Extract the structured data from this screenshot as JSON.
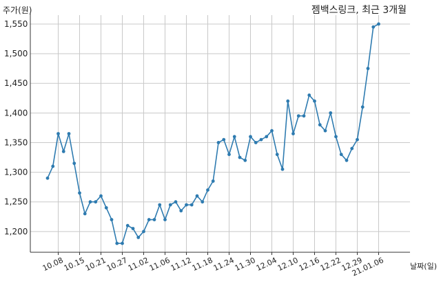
{
  "chart_data": {
    "type": "line",
    "title": "젬백스링크, 최근 3개월",
    "ylabel": "주가(원)",
    "xlabel": "날짜(일)",
    "ylim": [
      1165,
      1565
    ],
    "yticks": [
      1200,
      1250,
      1300,
      1350,
      1400,
      1450,
      1500,
      1550
    ],
    "ytick_labels": [
      "1,200",
      "1,250",
      "1,300",
      "1,350",
      "1,400",
      "1,450",
      "1,500",
      "1,550"
    ],
    "xticks": [
      {
        "label": "10.08",
        "index": 2
      },
      {
        "label": "10.15",
        "index": 6
      },
      {
        "label": "10.21",
        "index": 10
      },
      {
        "label": "10.27",
        "index": 14
      },
      {
        "label": "11.02",
        "index": 18
      },
      {
        "label": "11.06",
        "index": 22
      },
      {
        "label": "11.12",
        "index": 26
      },
      {
        "label": "11.18",
        "index": 30
      },
      {
        "label": "11.24",
        "index": 34
      },
      {
        "label": "11.30",
        "index": 38
      },
      {
        "label": "12.04",
        "index": 42
      },
      {
        "label": "12.10",
        "index": 46
      },
      {
        "label": "12.16",
        "index": 50
      },
      {
        "label": "12.22",
        "index": 54
      },
      {
        "label": "12.29",
        "index": 58
      },
      {
        "label": "21.01.06",
        "index": 62
      }
    ],
    "grid": true,
    "series": [
      {
        "color": "#2e7bb0",
        "values": [
          1290,
          1310,
          1365,
          1335,
          1365,
          1315,
          1265,
          1230,
          1250,
          1250,
          1260,
          1240,
          1220,
          1180,
          1180,
          1210,
          1205,
          1190,
          1200,
          1220,
          1220,
          1245,
          1220,
          1245,
          1250,
          1235,
          1245,
          1245,
          1260,
          1250,
          1270,
          1285,
          1350,
          1355,
          1330,
          1360,
          1325,
          1320,
          1360,
          1350,
          1355,
          1360,
          1370,
          1330,
          1305,
          1420,
          1365,
          1395,
          1395,
          1430,
          1420,
          1380,
          1370,
          1400,
          1360,
          1330,
          1320,
          1340,
          1355,
          1410,
          1475,
          1545,
          1550
        ]
      }
    ]
  }
}
